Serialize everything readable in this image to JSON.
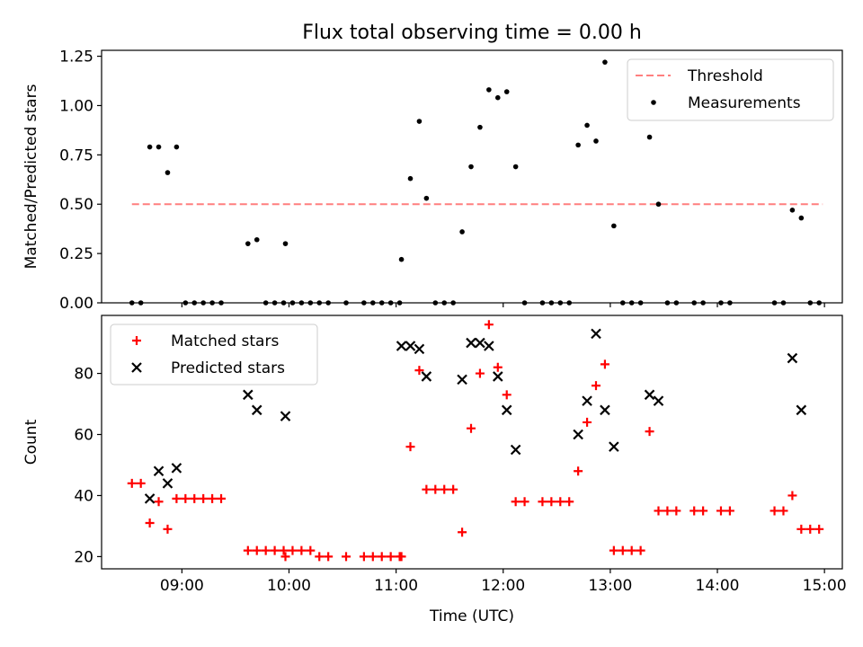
{
  "title": "Flux total observing time = 0.00 h",
  "chart_data": [
    {
      "type": "scatter",
      "ylabel": "Matched/Predicted stars",
      "xlim": [
        "08:15",
        "15:10"
      ],
      "ylim": [
        0,
        1.28
      ],
      "yticks": [
        "0.00",
        "0.25",
        "0.50",
        "0.75",
        "1.00",
        "1.25"
      ],
      "xticks": [
        "09:00",
        "10:00",
        "11:00",
        "12:00",
        "13:00",
        "14:00",
        "15:00"
      ],
      "grid": false,
      "legend_position": "top-right",
      "threshold": {
        "name": "Threshold",
        "color": "#ff7f7f",
        "value": 0.5,
        "x_start": "08:32",
        "x_end": "14:59"
      },
      "series": [
        {
          "name": "Measurements",
          "color": "#000000",
          "points": [
            [
              "08:32",
              0.0
            ],
            [
              "08:37",
              0.0
            ],
            [
              "08:42",
              0.79
            ],
            [
              "08:47",
              0.79
            ],
            [
              "08:52",
              0.66
            ],
            [
              "08:57",
              0.79
            ],
            [
              "09:02",
              0.0
            ],
            [
              "09:07",
              0.0
            ],
            [
              "09:12",
              0.0
            ],
            [
              "09:17",
              0.0
            ],
            [
              "09:22",
              0.0
            ],
            [
              "09:37",
              0.3
            ],
            [
              "09:42",
              0.32
            ],
            [
              "09:47",
              0.0
            ],
            [
              "09:52",
              0.0
            ],
            [
              "09:57",
              0.0
            ],
            [
              "10:02",
              0.0
            ],
            [
              "10:07",
              0.0
            ],
            [
              "10:12",
              0.0
            ],
            [
              "09:58",
              0.3
            ],
            [
              "10:17",
              0.0
            ],
            [
              "10:22",
              0.0
            ],
            [
              "10:32",
              0.0
            ],
            [
              "10:42",
              0.0
            ],
            [
              "10:47",
              0.0
            ],
            [
              "10:52",
              0.0
            ],
            [
              "10:57",
              0.0
            ],
            [
              "11:02",
              0.0
            ],
            [
              "11:03",
              0.22
            ],
            [
              "11:08",
              0.63
            ],
            [
              "11:13",
              0.92
            ],
            [
              "11:17",
              0.53
            ],
            [
              "11:22",
              0.0
            ],
            [
              "11:27",
              0.0
            ],
            [
              "11:32",
              0.0
            ],
            [
              "11:37",
              0.36
            ],
            [
              "11:42",
              0.69
            ],
            [
              "11:47",
              0.89
            ],
            [
              "11:52",
              1.08
            ],
            [
              "11:57",
              1.04
            ],
            [
              "12:02",
              1.07
            ],
            [
              "12:07",
              0.69
            ],
            [
              "12:12",
              0.0
            ],
            [
              "12:22",
              0.0
            ],
            [
              "12:27",
              0.0
            ],
            [
              "12:32",
              0.0
            ],
            [
              "12:37",
              0.0
            ],
            [
              "12:42",
              0.8
            ],
            [
              "12:47",
              0.9
            ],
            [
              "12:52",
              0.82
            ],
            [
              "12:57",
              1.22
            ],
            [
              "13:02",
              0.39
            ],
            [
              "13:07",
              0.0
            ],
            [
              "13:12",
              0.0
            ],
            [
              "13:17",
              0.0
            ],
            [
              "13:22",
              0.84
            ],
            [
              "13:27",
              0.5
            ],
            [
              "13:32",
              0.0
            ],
            [
              "13:37",
              0.0
            ],
            [
              "13:47",
              0.0
            ],
            [
              "13:52",
              0.0
            ],
            [
              "14:02",
              0.0
            ],
            [
              "14:07",
              0.0
            ],
            [
              "14:32",
              0.0
            ],
            [
              "14:37",
              0.0
            ],
            [
              "14:42",
              0.47
            ],
            [
              "14:47",
              0.43
            ],
            [
              "14:52",
              0.0
            ],
            [
              "14:57",
              0.0
            ]
          ]
        }
      ]
    },
    {
      "type": "scatter",
      "xlabel": "Time (UTC)",
      "ylabel": "Count",
      "xlim": [
        "08:15",
        "15:10"
      ],
      "ylim": [
        16,
        99
      ],
      "yticks": [
        "20",
        "40",
        "60",
        "80"
      ],
      "xticks": [
        "09:00",
        "10:00",
        "11:00",
        "12:00",
        "13:00",
        "14:00",
        "15:00"
      ],
      "grid": false,
      "legend_position": "top-left",
      "series": [
        {
          "name": "Matched stars",
          "color": "#ff0000",
          "marker": "+",
          "points": [
            [
              "08:32",
              44
            ],
            [
              "08:37",
              44
            ],
            [
              "08:42",
              31
            ],
            [
              "08:47",
              38
            ],
            [
              "08:52",
              29
            ],
            [
              "08:57",
              39
            ],
            [
              "09:02",
              39
            ],
            [
              "09:07",
              39
            ],
            [
              "09:12",
              39
            ],
            [
              "09:17",
              39
            ],
            [
              "09:22",
              39
            ],
            [
              "09:37",
              22
            ],
            [
              "09:42",
              22
            ],
            [
              "09:47",
              22
            ],
            [
              "09:52",
              22
            ],
            [
              "09:57",
              22
            ],
            [
              "10:02",
              22
            ],
            [
              "10:07",
              22
            ],
            [
              "10:12",
              22
            ],
            [
              "09:58",
              20
            ],
            [
              "10:17",
              20
            ],
            [
              "10:22",
              20
            ],
            [
              "10:32",
              20
            ],
            [
              "10:42",
              20
            ],
            [
              "10:47",
              20
            ],
            [
              "10:52",
              20
            ],
            [
              "10:57",
              20
            ],
            [
              "11:02",
              20
            ],
            [
              "11:03",
              20
            ],
            [
              "11:08",
              56
            ],
            [
              "11:13",
              81
            ],
            [
              "11:17",
              42
            ],
            [
              "11:22",
              42
            ],
            [
              "11:27",
              42
            ],
            [
              "11:32",
              42
            ],
            [
              "11:37",
              28
            ],
            [
              "11:42",
              62
            ],
            [
              "11:47",
              80
            ],
            [
              "11:52",
              96
            ],
            [
              "11:57",
              82
            ],
            [
              "12:02",
              73
            ],
            [
              "12:07",
              38
            ],
            [
              "12:12",
              38
            ],
            [
              "12:22",
              38
            ],
            [
              "12:27",
              38
            ],
            [
              "12:32",
              38
            ],
            [
              "12:37",
              38
            ],
            [
              "12:42",
              48
            ],
            [
              "12:47",
              64
            ],
            [
              "12:52",
              76
            ],
            [
              "12:57",
              83
            ],
            [
              "13:02",
              22
            ],
            [
              "13:07",
              22
            ],
            [
              "13:12",
              22
            ],
            [
              "13:17",
              22
            ],
            [
              "13:22",
              61
            ],
            [
              "13:27",
              35
            ],
            [
              "13:32",
              35
            ],
            [
              "13:37",
              35
            ],
            [
              "13:47",
              35
            ],
            [
              "13:52",
              35
            ],
            [
              "14:02",
              35
            ],
            [
              "14:07",
              35
            ],
            [
              "14:32",
              35
            ],
            [
              "14:37",
              35
            ],
            [
              "14:42",
              40
            ],
            [
              "14:47",
              29
            ],
            [
              "14:52",
              29
            ],
            [
              "14:57",
              29
            ]
          ]
        },
        {
          "name": "Predicted stars",
          "color": "#000000",
          "marker": "x",
          "points": [
            [
              "08:42",
              39
            ],
            [
              "08:47",
              48
            ],
            [
              "08:52",
              44
            ],
            [
              "08:57",
              49
            ],
            [
              "09:37",
              73
            ],
            [
              "09:42",
              68
            ],
            [
              "09:58",
              66
            ],
            [
              "11:03",
              89
            ],
            [
              "11:08",
              89
            ],
            [
              "11:13",
              88
            ],
            [
              "11:17",
              79
            ],
            [
              "11:37",
              78
            ],
            [
              "11:42",
              90
            ],
            [
              "11:47",
              90
            ],
            [
              "11:52",
              89
            ],
            [
              "11:57",
              79
            ],
            [
              "12:02",
              68
            ],
            [
              "12:07",
              55
            ],
            [
              "12:42",
              60
            ],
            [
              "12:47",
              71
            ],
            [
              "12:52",
              93
            ],
            [
              "12:57",
              68
            ],
            [
              "13:02",
              56
            ],
            [
              "13:22",
              73
            ],
            [
              "13:27",
              71
            ],
            [
              "14:42",
              85
            ],
            [
              "14:47",
              68
            ]
          ]
        }
      ]
    }
  ]
}
